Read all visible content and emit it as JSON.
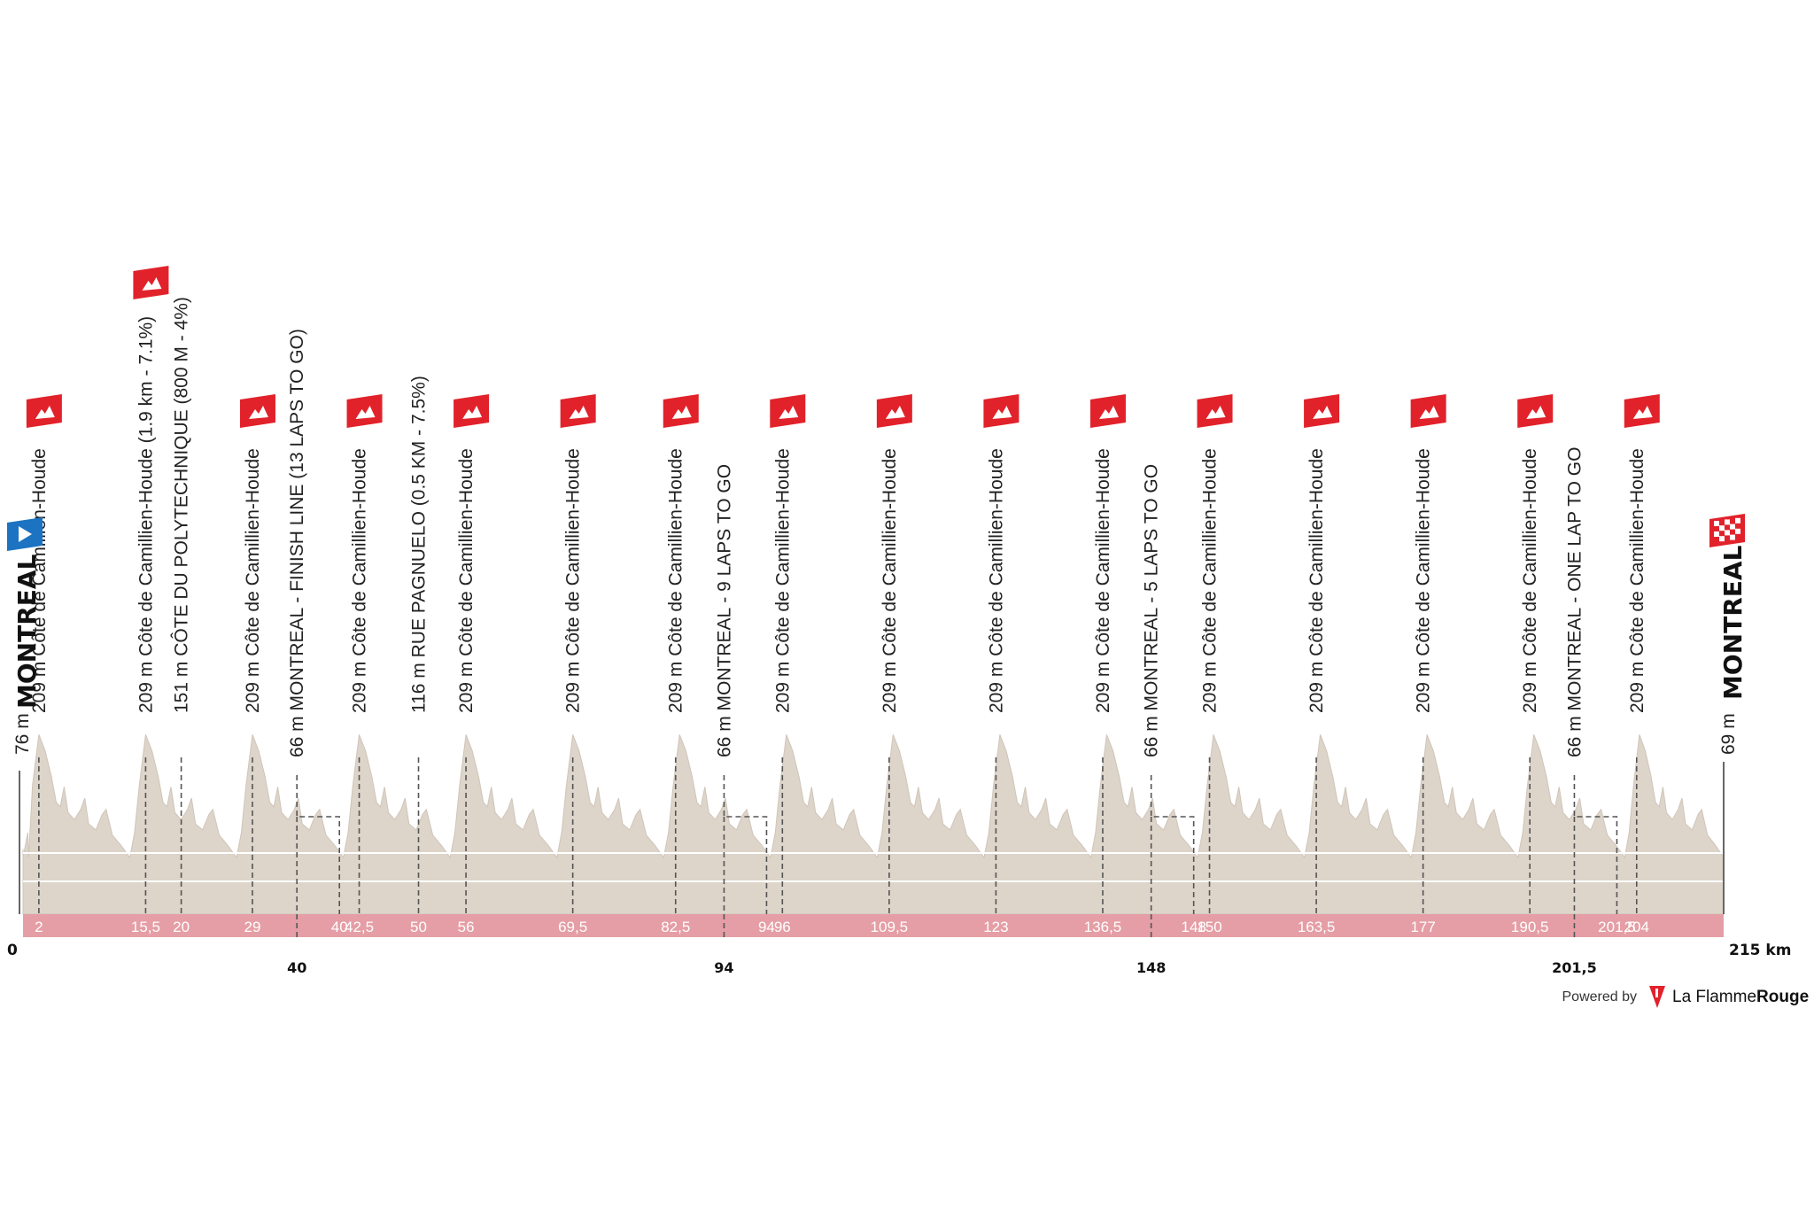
{
  "chart_data": {
    "type": "area",
    "title": "",
    "xlabel": "",
    "ylabel": "",
    "x_unit": "km",
    "xlim": [
      0,
      215
    ],
    "start": {
      "km": 0,
      "elevation_label": "76 m",
      "town": "MONTREAL",
      "elevation": 76
    },
    "finish": {
      "km": 215,
      "elevation_label": "69 m",
      "town": "MONTREAL",
      "elevation": 69
    },
    "start_km_label": "0",
    "end_km_label": "215 km",
    "points": [
      {
        "km": 2,
        "km_label": "2",
        "label": "209 m Côte de Camillien-Houde",
        "type": "climb"
      },
      {
        "km": 15.5,
        "km_label": "15,5",
        "label": "209 m Côte de Camillien-Houde (1.9 km - 7.1%)",
        "type": "climb"
      },
      {
        "km": 20,
        "km_label": "20",
        "label": "151 m CÔTE DU POLYTECHNIQUE (800 M - 4%)",
        "type": "point"
      },
      {
        "km": 29,
        "km_label": "29",
        "label": "209 m Côte de Camillien-Houde",
        "type": "climb"
      },
      {
        "km": 40,
        "km_label": "40",
        "label": "66 m MONTREAL - FINISH LINE (13 LAPS TO GO)",
        "type": "pass"
      },
      {
        "km": 42.5,
        "km_label": "42,5",
        "label": "209 m Côte de Camillien-Houde",
        "type": "climb"
      },
      {
        "km": 50,
        "km_label": "50",
        "label": "116 m RUE PAGNUELO (0.5 KM - 7.5%)",
        "type": "point"
      },
      {
        "km": 56,
        "km_label": "56",
        "label": "209 m Côte de Camillien-Houde",
        "type": "climb"
      },
      {
        "km": 69.5,
        "km_label": "69,5",
        "label": "209 m Côte de Camillien-Houde",
        "type": "climb"
      },
      {
        "km": 82.5,
        "km_label": "82,5",
        "label": "209 m Côte de Camillien-Houde",
        "type": "climb"
      },
      {
        "km": 94,
        "km_label": "94",
        "label": "66 m MONTREAL - 9 LAPS TO GO",
        "type": "pass"
      },
      {
        "km": 96,
        "km_label": "96",
        "label": "209 m Côte de Camillien-Houde",
        "type": "climb"
      },
      {
        "km": 109.5,
        "km_label": "109,5",
        "label": "209 m Côte de Camillien-Houde",
        "type": "climb"
      },
      {
        "km": 123,
        "km_label": "123",
        "label": "209 m Côte de Camillien-Houde",
        "type": "climb"
      },
      {
        "km": 136.5,
        "km_label": "136,5",
        "label": "209 m Côte de Camillien-Houde",
        "type": "climb"
      },
      {
        "km": 148,
        "km_label": "148",
        "label": "66 m MONTREAL - 5 LAPS TO GO",
        "type": "pass"
      },
      {
        "km": 150,
        "km_label": "150",
        "label": "209 m Côte de Camillien-Houde",
        "type": "climb"
      },
      {
        "km": 163.5,
        "km_label": "163,5",
        "label": "209 m Côte de Camillien-Houde",
        "type": "climb"
      },
      {
        "km": 177,
        "km_label": "177",
        "label": "209 m Côte de Camillien-Houde",
        "type": "climb"
      },
      {
        "km": 190.5,
        "km_label": "190,5",
        "label": "209 m Côte de Camillien-Houde",
        "type": "climb"
      },
      {
        "km": 201.5,
        "km_label": "201,5",
        "label": "66 m MONTREAL - ONE LAP TO GO",
        "type": "pass"
      },
      {
        "km": 204,
        "km_label": "204",
        "label": "209 m Côte de Camillien-Houde",
        "type": "climb"
      }
    ],
    "highlighted_climb_km": 15.5,
    "lap_length_km": 13.5,
    "lap_profile": [
      {
        "km": 0,
        "elevation": 66
      },
      {
        "km": 0.6,
        "elevation": 95
      },
      {
        "km": 1.2,
        "elevation": 150
      },
      {
        "km": 2,
        "elevation": 209
      },
      {
        "km": 2.8,
        "elevation": 190
      },
      {
        "km": 3.6,
        "elevation": 160
      },
      {
        "km": 4.2,
        "elevation": 130
      },
      {
        "km": 4.7,
        "elevation": 125
      },
      {
        "km": 5.2,
        "elevation": 148
      },
      {
        "km": 5.7,
        "elevation": 118
      },
      {
        "km": 6.5,
        "elevation": 110
      },
      {
        "km": 7.3,
        "elevation": 122
      },
      {
        "km": 7.8,
        "elevation": 135
      },
      {
        "km": 8.3,
        "elevation": 105
      },
      {
        "km": 9.2,
        "elevation": 98
      },
      {
        "km": 10,
        "elevation": 116
      },
      {
        "km": 10.5,
        "elevation": 122
      },
      {
        "km": 11.3,
        "elevation": 92
      },
      {
        "km": 12.4,
        "elevation": 80
      },
      {
        "km": 13.5,
        "elevation": 66
      }
    ],
    "colors": {
      "profile_fill": "#ddd4ca",
      "profile_line": "#cfc5b9",
      "km_band": "#e59ea5",
      "climb_flag": "#e1222b",
      "start_flag": "#1b73c2",
      "finish_flag": "#e1222b"
    },
    "grid": true
  },
  "footer": {
    "powered_by": "Powered by",
    "brand_light": "La Flamme",
    "brand_bold": "Rouge",
    "logo_icon": "la-flamme-rouge-logo-icon"
  }
}
